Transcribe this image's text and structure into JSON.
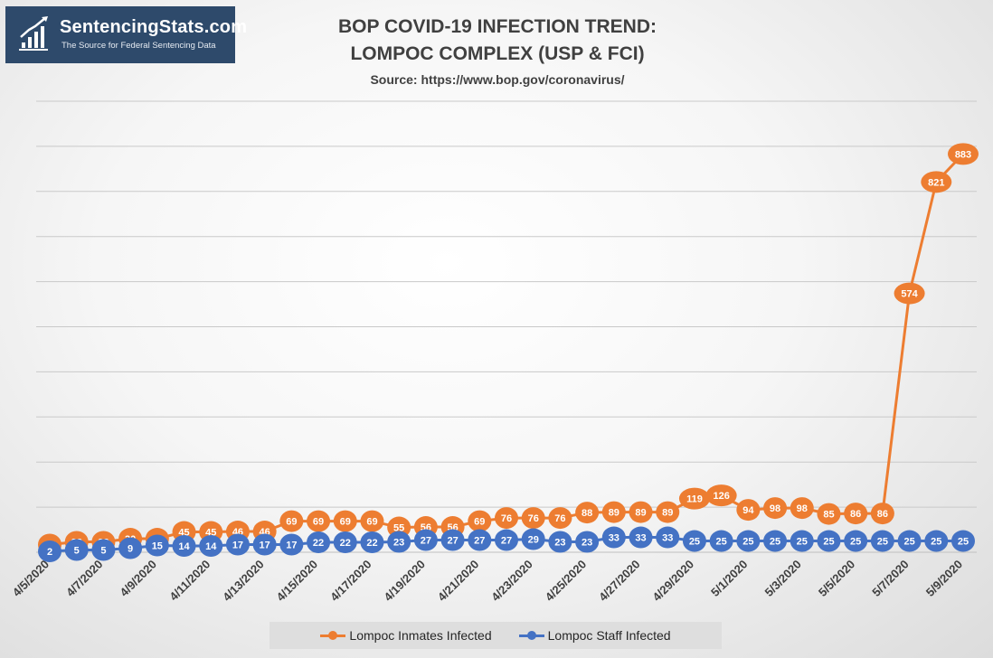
{
  "logo": {
    "name": "SentencingStats.com",
    "tagline": "The Source for Federal Sentencing Data",
    "icon": "bar-chart-trend-icon"
  },
  "colors": {
    "inmates": "#ED7D31",
    "staff": "#4472C4",
    "logo_bg": "#2e4a6b"
  },
  "chart_data": {
    "type": "line",
    "title": "BOP COVID-19 INFECTION TREND:",
    "subtitle": "LOMPOC COMPLEX (USP & FCI)",
    "source": "Source: https://www.bop.gov/coronavirus/",
    "x": [
      "4/5/2020",
      "4/6/2020",
      "4/7/2020",
      "4/8/2020",
      "4/9/2020",
      "4/10/2020",
      "4/11/2020",
      "4/12/2020",
      "4/13/2020",
      "4/14/2020",
      "4/15/2020",
      "4/16/2020",
      "4/17/2020",
      "4/18/2020",
      "4/19/2020",
      "4/20/2020",
      "4/21/2020",
      "4/22/2020",
      "4/23/2020",
      "4/24/2020",
      "4/25/2020",
      "4/26/2020",
      "4/27/2020",
      "4/28/2020",
      "4/29/2020",
      "4/30/2020",
      "5/1/2020",
      "5/2/2020",
      "5/3/2020",
      "5/4/2020",
      "5/5/2020",
      "5/6/2020",
      "5/7/2020",
      "5/8/2020",
      "5/9/2020"
    ],
    "tick_labels": [
      "4/5/2020",
      "4/7/2020",
      "4/9/2020",
      "4/11/2020",
      "4/13/2020",
      "4/15/2020",
      "4/17/2020",
      "4/19/2020",
      "4/21/2020",
      "4/23/2020",
      "4/25/2020",
      "4/27/2020",
      "4/29/2020",
      "5/1/2020",
      "5/3/2020",
      "5/5/2020",
      "5/7/2020",
      "5/9/2020"
    ],
    "series": [
      {
        "name": "Lompoc Inmates Infected",
        "color": "#ED7D31",
        "values": [
          17,
          23,
          23,
          30,
          30,
          45,
          45,
          46,
          46,
          69,
          69,
          69,
          69,
          55,
          56,
          56,
          69,
          76,
          76,
          76,
          88,
          89,
          89,
          89,
          119,
          126,
          94,
          98,
          98,
          85,
          86,
          86,
          574,
          821,
          883
        ]
      },
      {
        "name": "Lompoc Staff Infected",
        "color": "#4472C4",
        "values": [
          2,
          5,
          5,
          9,
          15,
          14,
          14,
          17,
          17,
          17,
          22,
          22,
          22,
          23,
          27,
          27,
          27,
          27,
          29,
          23,
          23,
          33,
          33,
          33,
          25,
          25,
          25,
          25,
          25,
          25,
          25,
          25,
          25,
          25,
          25
        ]
      }
    ],
    "ylim": [
      0,
      1000
    ],
    "grid": true,
    "legend": "bottom"
  }
}
